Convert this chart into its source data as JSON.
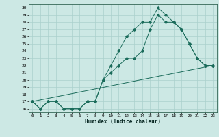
{
  "xlabel": "Humidex (Indice chaleur)",
  "bg_color": "#cce8e4",
  "grid_color": "#aad0cc",
  "line_color": "#1a6b5a",
  "xlim": [
    -0.5,
    23.5
  ],
  "ylim": [
    15.5,
    30.5
  ],
  "xticks": [
    0,
    1,
    2,
    3,
    4,
    5,
    6,
    7,
    8,
    9,
    10,
    11,
    12,
    13,
    14,
    15,
    16,
    17,
    18,
    19,
    20,
    21,
    22,
    23
  ],
  "yticks": [
    16,
    17,
    18,
    19,
    20,
    21,
    22,
    23,
    24,
    25,
    26,
    27,
    28,
    29,
    30
  ],
  "line1_x": [
    0,
    1,
    2,
    3,
    4,
    5,
    6,
    7,
    8,
    9,
    10,
    11,
    12,
    13,
    14,
    15,
    16,
    17,
    18,
    19,
    20,
    21,
    22,
    23
  ],
  "line1_y": [
    17,
    16,
    17,
    17,
    16,
    16,
    16,
    17,
    17,
    20,
    22,
    24,
    26,
    27,
    28,
    28,
    30,
    29,
    28,
    27,
    25,
    23,
    22,
    22
  ],
  "line2_x": [
    0,
    1,
    2,
    3,
    4,
    5,
    6,
    7,
    8,
    9,
    10,
    11,
    12,
    13,
    14,
    15,
    16,
    17,
    18,
    19,
    20,
    21,
    22,
    23
  ],
  "line2_y": [
    17,
    16,
    17,
    17,
    16,
    16,
    16,
    17,
    17,
    20,
    21,
    22,
    23,
    23,
    24,
    27,
    29,
    28,
    28,
    27,
    25,
    23,
    22,
    22
  ],
  "line3_x": [
    0,
    23
  ],
  "line3_y": [
    17,
    22
  ]
}
